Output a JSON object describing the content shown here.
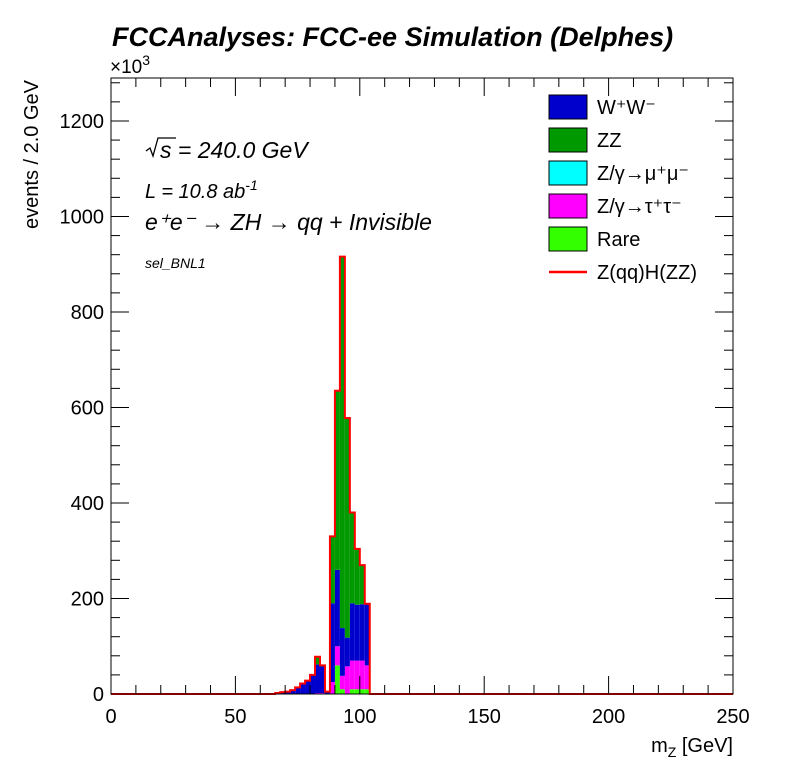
{
  "chart_data": {
    "type": "bar",
    "stacked": true,
    "title": "FCCAnalyses: FCC-ee Simulation (Delphes)",
    "xlabel_main": "m",
    "xlabel_sub": "Z",
    "xlabel_unit": " [GeV]",
    "ylabel": "events / 2.0 GeV",
    "y_multiplier": "×10",
    "y_multiplier_exp": "3",
    "xlim": [
      0,
      250
    ],
    "ylim": [
      0,
      1290
    ],
    "x_ticks": [
      0,
      50,
      100,
      150,
      200,
      250
    ],
    "y_ticks": [
      0,
      200,
      400,
      600,
      800,
      1000,
      1200
    ],
    "bin_width": 2,
    "annotations": {
      "sqrt_s": "s",
      "sqrt_s_rest": " = 240.0 GeV",
      "lumi_main": "L = 10.8 ab",
      "lumi_exp": "-1",
      "process": "e⁺e⁻ → ZH → qq + Invisible",
      "selection": "sel_BNL1"
    },
    "x": [
      66,
      68,
      70,
      72,
      74,
      76,
      78,
      80,
      82,
      84,
      86,
      88,
      90,
      92,
      94,
      96,
      98,
      100,
      102,
      104
    ],
    "series": [
      {
        "name": "Rare",
        "color": "#33ff00",
        "values": [
          0,
          0,
          0,
          0,
          0,
          0,
          0,
          0,
          0,
          0,
          0,
          0,
          60,
          10,
          0,
          10,
          10,
          10,
          10,
          0
        ]
      },
      {
        "name": "Z/γ→τ⁺τ⁻",
        "color": "#ff00ff",
        "values": [
          0,
          0,
          0,
          0,
          0,
          0,
          0,
          0,
          2,
          2,
          0,
          25,
          40,
          28,
          58,
          60,
          60,
          60,
          50,
          0
        ]
      },
      {
        "name": "Z/γ→μ⁺μ⁻",
        "color": "#00ffff",
        "values": [
          0,
          0,
          0,
          0,
          0,
          0,
          0,
          0,
          0,
          0,
          0,
          0,
          0,
          0,
          0,
          0,
          0,
          0,
          0,
          0
        ]
      },
      {
        "name": "W⁺W⁻",
        "color": "#0000cc",
        "values": [
          2,
          4,
          5,
          8,
          14,
          22,
          28,
          40,
          60,
          56,
          5,
          165,
          160,
          100,
          60,
          120,
          117,
          118,
          128,
          0
        ]
      },
      {
        "name": "ZZ",
        "color": "#009900",
        "values": [
          0,
          0,
          0,
          0,
          0,
          0,
          0,
          0,
          16,
          2,
          0,
          140,
          375,
          778,
          460,
          190,
          117,
          82,
          1,
          0
        ]
      }
    ],
    "signal": {
      "name": "Z(qq)H(ZZ)",
      "color": "#ff0000"
    },
    "legend_order": [
      "W⁺W⁻",
      "ZZ",
      "Z/γ→μ⁺μ⁻",
      "Z/γ→τ⁺τ⁻",
      "Rare",
      "Z(qq)H(ZZ)"
    ],
    "legend_position": "top-right"
  }
}
